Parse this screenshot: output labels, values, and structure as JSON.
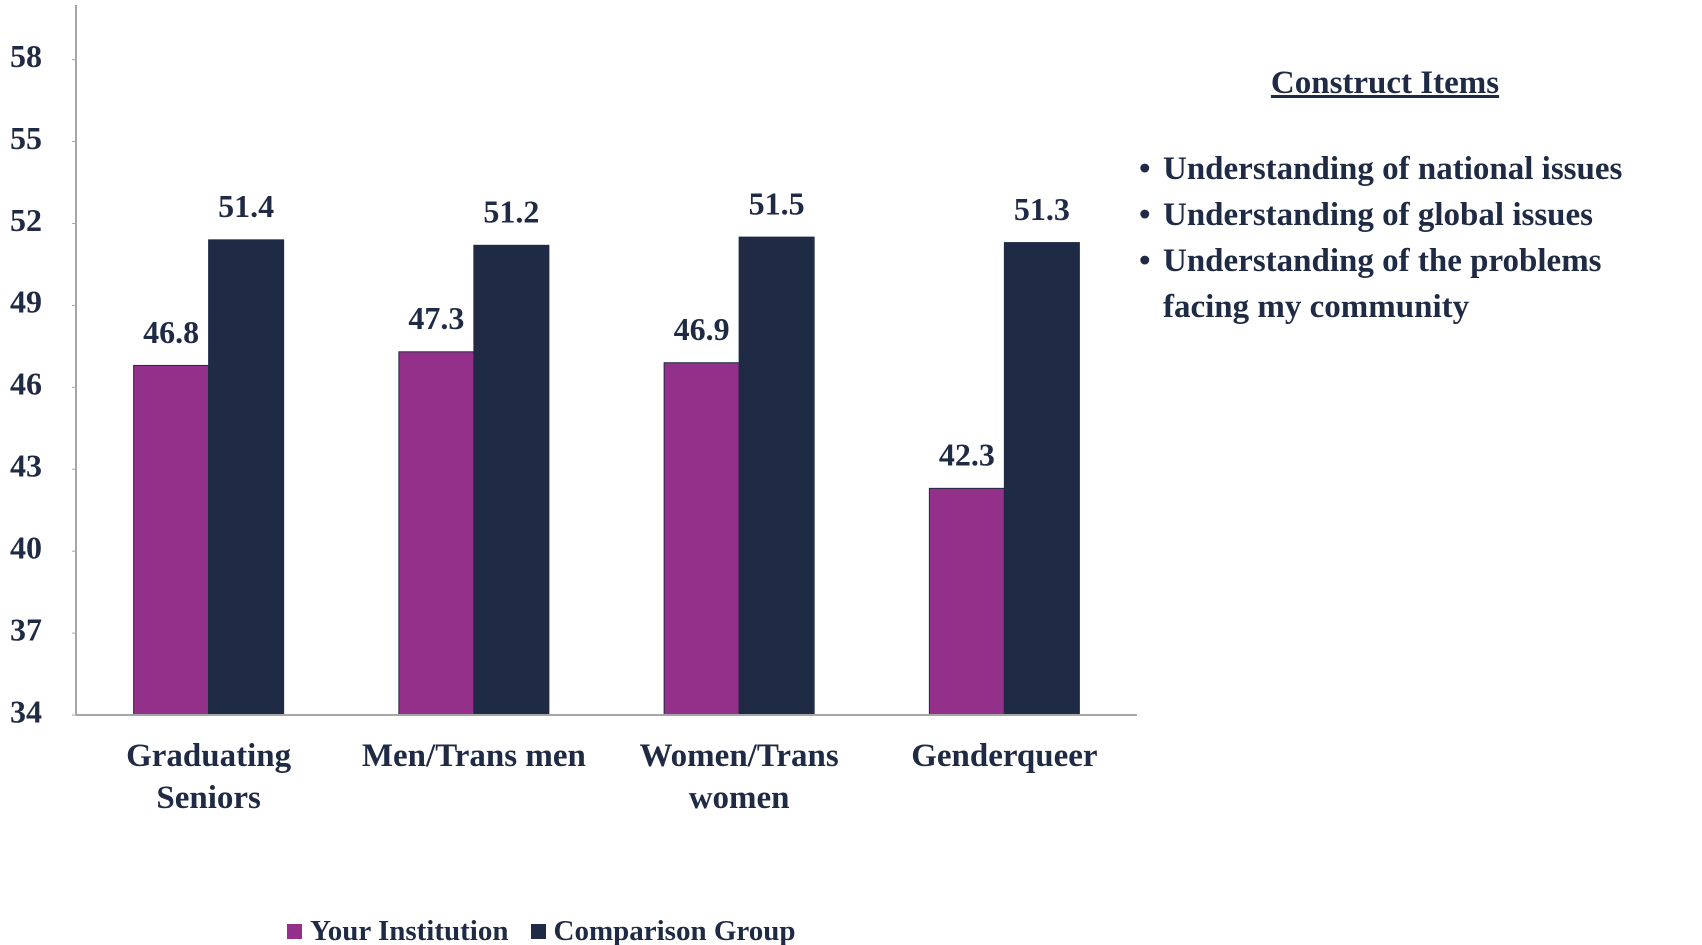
{
  "chart_data": {
    "type": "bar",
    "categories": [
      "Graduating Seniors",
      "Men/Trans men",
      "Women/Trans women",
      "Genderqueer"
    ],
    "series": [
      {
        "name": "Your Institution",
        "color": "#93318a",
        "values": [
          46.8,
          47.3,
          46.9,
          42.3
        ]
      },
      {
        "name": "Comparison Group",
        "color": "#1f2a44",
        "values": [
          51.4,
          51.2,
          51.5,
          51.3
        ]
      }
    ],
    "ylim": [
      34,
      60
    ],
    "yticks": [
      34,
      37,
      40,
      43,
      46,
      49,
      52,
      55,
      58
    ],
    "grid": false,
    "legend": "bottom"
  },
  "construct_items": {
    "title": "Construct Items",
    "items": [
      "Understanding of national issues",
      "Understanding of global issues",
      "Understanding of the problems facing my community"
    ]
  }
}
